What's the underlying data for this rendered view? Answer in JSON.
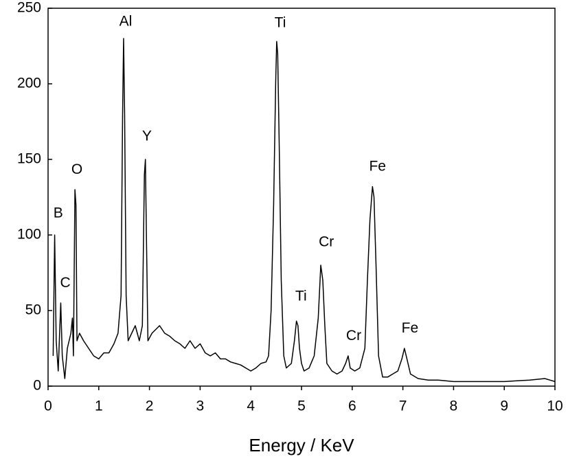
{
  "chart_data": {
    "type": "line",
    "x_label": "Energy / KeV",
    "color": "#000000",
    "x": [
      0.1,
      0.13,
      0.16,
      0.2,
      0.25,
      0.28,
      0.33,
      0.38,
      0.45,
      0.48,
      0.5,
      0.53,
      0.55,
      0.57,
      0.62,
      0.7,
      0.8,
      0.9,
      1.0,
      1.1,
      1.2,
      1.3,
      1.38,
      1.44,
      1.47,
      1.49,
      1.51,
      1.54,
      1.58,
      1.65,
      1.72,
      1.8,
      1.86,
      1.9,
      1.92,
      1.94,
      1.97,
      2.05,
      2.2,
      2.3,
      2.4,
      2.5,
      2.6,
      2.7,
      2.8,
      2.9,
      3.0,
      3.1,
      3.2,
      3.3,
      3.4,
      3.5,
      3.6,
      3.7,
      3.8,
      3.9,
      4.0,
      4.1,
      4.2,
      4.3,
      4.35,
      4.4,
      4.45,
      4.49,
      4.51,
      4.53,
      4.56,
      4.6,
      4.65,
      4.7,
      4.8,
      4.86,
      4.9,
      4.93,
      4.96,
      5.0,
      5.05,
      5.15,
      5.25,
      5.33,
      5.38,
      5.42,
      5.46,
      5.5,
      5.6,
      5.7,
      5.8,
      5.87,
      5.92,
      5.96,
      6.05,
      6.15,
      6.25,
      6.3,
      6.35,
      6.4,
      6.43,
      6.47,
      6.52,
      6.6,
      6.7,
      6.8,
      6.9,
      6.98,
      7.03,
      7.08,
      7.15,
      7.3,
      7.5,
      7.7,
      8.0,
      8.5,
      9.0,
      9.5,
      9.8,
      9.9,
      10.0
    ],
    "values": [
      20,
      100,
      30,
      10,
      55,
      20,
      5,
      25,
      35,
      45,
      20,
      130,
      120,
      30,
      35,
      30,
      25,
      20,
      18,
      22,
      22,
      28,
      35,
      60,
      180,
      230,
      180,
      60,
      30,
      35,
      40,
      30,
      40,
      140,
      150,
      100,
      30,
      35,
      40,
      35,
      33,
      30,
      28,
      25,
      30,
      25,
      28,
      22,
      20,
      22,
      18,
      18,
      16,
      15,
      14,
      12,
      10,
      12,
      15,
      16,
      20,
      50,
      120,
      200,
      228,
      220,
      160,
      70,
      20,
      12,
      15,
      30,
      43,
      40,
      25,
      15,
      10,
      12,
      20,
      45,
      80,
      70,
      40,
      15,
      10,
      8,
      10,
      15,
      20,
      12,
      10,
      12,
      25,
      70,
      110,
      132,
      125,
      80,
      20,
      6,
      6,
      8,
      10,
      18,
      25,
      18,
      8,
      5,
      4,
      4,
      3,
      3,
      3,
      4,
      5,
      4,
      3
    ],
    "annotations": [
      {
        "text": "B",
        "x": 0.2,
        "y": 114
      },
      {
        "text": "C",
        "x": 0.34,
        "y": 68
      },
      {
        "text": "O",
        "x": 0.57,
        "y": 143
      },
      {
        "text": "Al",
        "x": 1.53,
        "y": 241
      },
      {
        "text": "Y",
        "x": 1.95,
        "y": 165
      },
      {
        "text": "Ti",
        "x": 4.58,
        "y": 240
      },
      {
        "text": "Ti",
        "x": 4.99,
        "y": 59
      },
      {
        "text": "Cr",
        "x": 5.49,
        "y": 95
      },
      {
        "text": "Cr",
        "x": 6.03,
        "y": 33
      },
      {
        "text": "Fe",
        "x": 6.5,
        "y": 145
      },
      {
        "text": "Fe",
        "x": 7.14,
        "y": 38
      }
    ],
    "xlim": [
      0,
      10
    ],
    "xticks": [
      0,
      1,
      2,
      3,
      4,
      5,
      6,
      7,
      8,
      9,
      10
    ],
    "ylim": [
      0,
      250
    ],
    "yticks": [
      0,
      50,
      100,
      150,
      200,
      250
    ],
    "grid": false
  }
}
